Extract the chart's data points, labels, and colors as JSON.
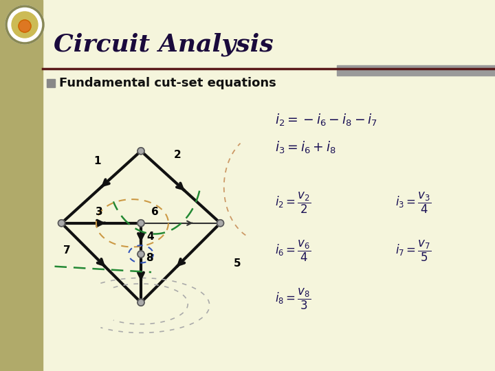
{
  "bg_color": "#f5f5dc",
  "title": "Circuit Analysis",
  "subtitle": "Fundamental cut-set equations",
  "title_color": "#1a0a3c",
  "sidebar_color": "#b0aa6a",
  "separator_color": "#5a1a1a",
  "gray_bar_color": "#9a9a9a",
  "node_color": "#aaaaaa",
  "node_edge_color": "#555555",
  "edge_thick_color": "#111111",
  "edge_thin_color": "#444444",
  "green_dash_color": "#228833",
  "tan_dash_color": "#cc9944",
  "blue_dash_color": "#3355bb",
  "gray_dash_color": "#aaaaaa",
  "eq_color": "#1a1055",
  "logo_outer": "#888855",
  "logo_mid": "#ccbb55",
  "logo_inner": "#dd7722"
}
